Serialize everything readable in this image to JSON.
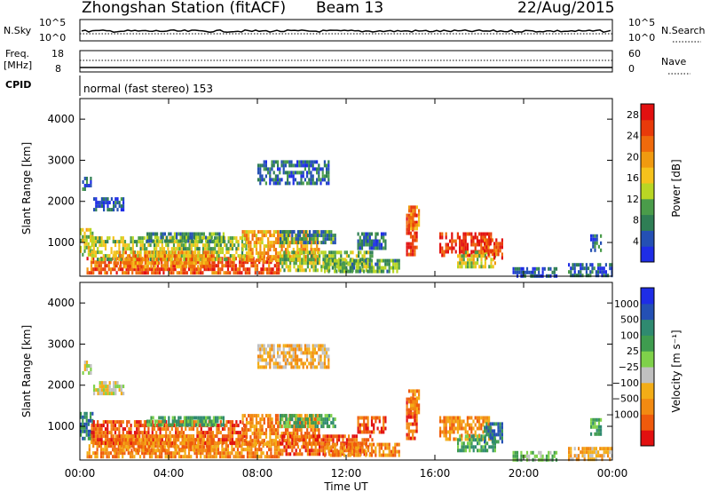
{
  "header": {
    "title": "Zhongshan Station (fitACF)",
    "beam": "Beam 13",
    "date": "22/Aug/2015",
    "mode": "normal (fast stereo) 153"
  },
  "strips": {
    "nsky_label": "N.Sky",
    "nsky_ticks": [
      "10^5",
      "10^0"
    ],
    "nsearch_label": "N.Search",
    "nsearch_ticks": [
      "10^5",
      "10^0"
    ],
    "freq_label": "Freq.",
    "freq_unit": "[MHz]",
    "freq_ticks": [
      "18",
      "8"
    ],
    "nave_label": "Nave",
    "nave_ticks": [
      "60",
      "0"
    ],
    "cpid_label": "CPID"
  },
  "colors": {
    "power": [
      "#1e2de6",
      "#2450b4",
      "#2f7e55",
      "#4a9c4a",
      "#b9d624",
      "#f5c21c",
      "#f09a10",
      "#ef6a0c",
      "#e83a0a",
      "#e21010"
    ],
    "velocity": [
      "#e21010",
      "#ef5a0c",
      "#f28a12",
      "#f3ad17",
      "#c0c0c0",
      "#7fd14a",
      "#3f9c4f",
      "#2f8a70",
      "#2450b4",
      "#1e2de6"
    ]
  },
  "chart_data": [
    {
      "type": "heatmap",
      "panel": "power",
      "ylabel": "Slant Range [km]",
      "ylim": [
        180,
        4500
      ],
      "yticks": [
        "1000",
        "2000",
        "3000",
        "4000"
      ],
      "xlim": [
        0,
        24
      ],
      "colorbar": {
        "label": "Power [dB]",
        "range": [
          0,
          30
        ],
        "ticks": [
          "4",
          "8",
          "12",
          "16",
          "20",
          "24",
          "28"
        ]
      },
      "regions": [
        {
          "t0": 0.0,
          "t1": 0.6,
          "r0": 700,
          "r1": 1350,
          "v": 14
        },
        {
          "t0": 0.1,
          "t1": 0.5,
          "r0": 2300,
          "r1": 2600,
          "v": 6
        },
        {
          "t0": 0.6,
          "t1": 2.0,
          "r0": 1800,
          "r1": 2100,
          "v": 5
        },
        {
          "t0": 0.3,
          "t1": 9.0,
          "r0": 300,
          "r1": 650,
          "v": 24
        },
        {
          "t0": 0.5,
          "t1": 7.5,
          "r0": 600,
          "r1": 1150,
          "v": 13
        },
        {
          "t0": 1.5,
          "t1": 6.0,
          "r0": 400,
          "r1": 800,
          "v": 20
        },
        {
          "t0": 3.0,
          "t1": 6.5,
          "r0": 1000,
          "r1": 1250,
          "v": 9
        },
        {
          "t0": 7.3,
          "t1": 10.8,
          "r0": 600,
          "r1": 1300,
          "v": 19
        },
        {
          "t0": 9.0,
          "t1": 11.5,
          "r0": 1000,
          "r1": 1300,
          "v": 8
        },
        {
          "t0": 9.0,
          "t1": 13.2,
          "r0": 300,
          "r1": 800,
          "v": 12
        },
        {
          "t0": 8.0,
          "t1": 11.2,
          "r0": 2400,
          "r1": 3000,
          "v": 6
        },
        {
          "t0": 11.0,
          "t1": 14.4,
          "r0": 300,
          "r1": 600,
          "v": 10
        },
        {
          "t0": 12.5,
          "t1": 13.8,
          "r0": 900,
          "r1": 1250,
          "v": 6
        },
        {
          "t0": 14.7,
          "t1": 15.2,
          "r0": 700,
          "r1": 1700,
          "v": 26
        },
        {
          "t0": 14.8,
          "t1": 15.3,
          "r0": 1300,
          "r1": 1900,
          "v": 20
        },
        {
          "t0": 16.2,
          "t1": 18.5,
          "r0": 650,
          "r1": 1250,
          "v": 27
        },
        {
          "t0": 17.0,
          "t1": 18.7,
          "r0": 400,
          "r1": 800,
          "v": 14
        },
        {
          "t0": 18.2,
          "t1": 19.0,
          "r0": 600,
          "r1": 1100,
          "v": 25
        },
        {
          "t0": 19.5,
          "t1": 21.5,
          "r0": 200,
          "r1": 400,
          "v": 5
        },
        {
          "t0": 22.0,
          "t1": 24.0,
          "r0": 200,
          "r1": 500,
          "v": 5
        },
        {
          "t0": 23.0,
          "t1": 23.5,
          "r0": 800,
          "r1": 1200,
          "v": 6
        }
      ]
    },
    {
      "type": "heatmap",
      "panel": "velocity",
      "ylabel": "Slant Range [km]",
      "ylim": [
        180,
        4500
      ],
      "yticks": [
        "1000",
        "2000",
        "3000",
        "4000"
      ],
      "xlim": [
        0,
        24
      ],
      "xticks": [
        "00:00",
        "04:00",
        "08:00",
        "12:00",
        "16:00",
        "20:00",
        "00:00"
      ],
      "xlabel": "Time UT",
      "colorbar": {
        "label": "Velocity [m s⁻¹]",
        "ticks": [
          "1000",
          "500",
          "100",
          "25",
          "−25",
          "−100",
          "−500",
          "−1000"
        ]
      },
      "regions": [
        {
          "t0": 0.0,
          "t1": 0.6,
          "r0": 700,
          "r1": 1350,
          "v": 7
        },
        {
          "t0": 0.1,
          "t1": 0.5,
          "r0": 2300,
          "r1": 2600,
          "v": 4
        },
        {
          "t0": 0.6,
          "t1": 2.0,
          "r0": 1800,
          "r1": 2100,
          "v": 4
        },
        {
          "t0": 0.3,
          "t1": 9.0,
          "r0": 300,
          "r1": 650,
          "v": 2
        },
        {
          "t0": 0.5,
          "t1": 7.5,
          "r0": 600,
          "r1": 1150,
          "v": 1
        },
        {
          "t0": 1.5,
          "t1": 6.0,
          "r0": 400,
          "r1": 800,
          "v": 2
        },
        {
          "t0": 3.0,
          "t1": 6.5,
          "r0": 1000,
          "r1": 1250,
          "v": 6
        },
        {
          "t0": 7.3,
          "t1": 10.8,
          "r0": 600,
          "r1": 1300,
          "v": 2
        },
        {
          "t0": 9.0,
          "t1": 11.5,
          "r0": 1000,
          "r1": 1300,
          "v": 6
        },
        {
          "t0": 9.0,
          "t1": 13.2,
          "r0": 300,
          "r1": 800,
          "v": 1
        },
        {
          "t0": 8.0,
          "t1": 11.2,
          "r0": 2400,
          "r1": 3000,
          "v": 3
        },
        {
          "t0": 11.0,
          "t1": 14.4,
          "r0": 300,
          "r1": 600,
          "v": 2
        },
        {
          "t0": 12.5,
          "t1": 13.8,
          "r0": 900,
          "r1": 1250,
          "v": 1
        },
        {
          "t0": 14.7,
          "t1": 15.2,
          "r0": 700,
          "r1": 1700,
          "v": 1
        },
        {
          "t0": 14.8,
          "t1": 15.3,
          "r0": 1300,
          "r1": 1900,
          "v": 2
        },
        {
          "t0": 16.2,
          "t1": 18.5,
          "r0": 650,
          "r1": 1250,
          "v": 2
        },
        {
          "t0": 17.0,
          "t1": 18.7,
          "r0": 400,
          "r1": 800,
          "v": 6
        },
        {
          "t0": 18.2,
          "t1": 19.0,
          "r0": 600,
          "r1": 1100,
          "v": 7
        },
        {
          "t0": 19.5,
          "t1": 21.5,
          "r0": 200,
          "r1": 400,
          "v": 5
        },
        {
          "t0": 22.0,
          "t1": 24.0,
          "r0": 200,
          "r1": 500,
          "v": 3
        },
        {
          "t0": 23.0,
          "t1": 23.5,
          "r0": 800,
          "r1": 1200,
          "v": 6
        }
      ]
    }
  ]
}
